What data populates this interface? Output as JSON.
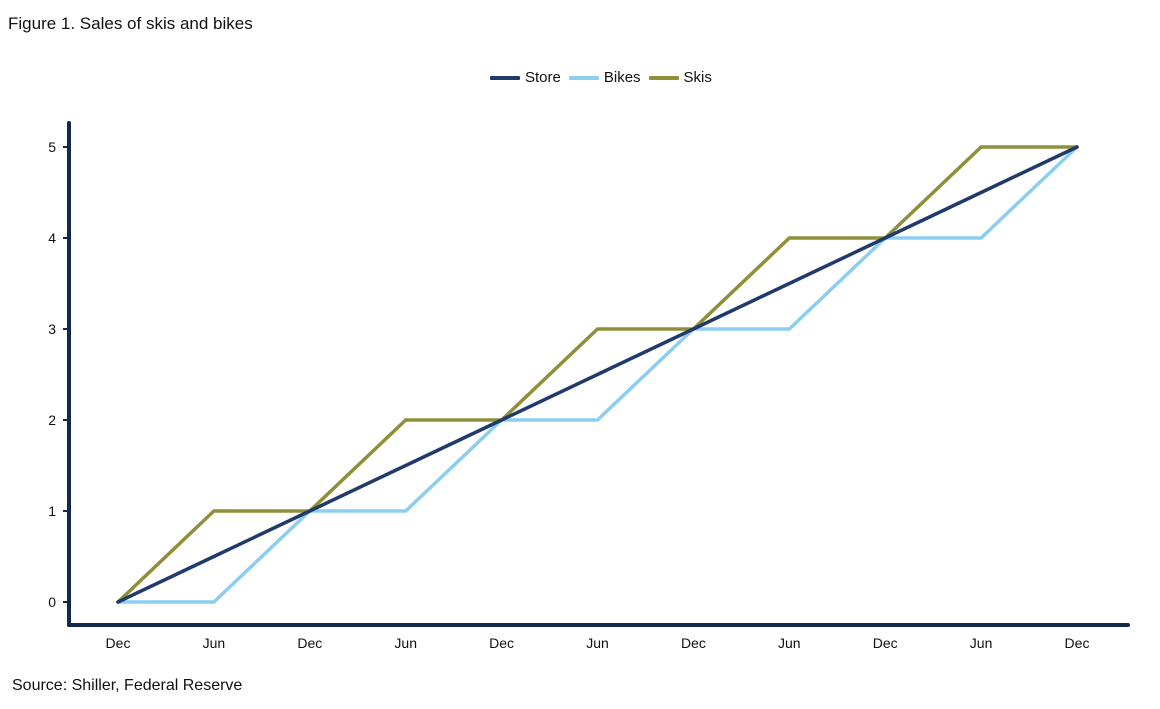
{
  "chart_data": {
    "type": "line",
    "title": "Figure 1. Sales of skis and bikes",
    "source": "Source: Shiller, Federal Reserve",
    "categories": [
      "Dec",
      "Jun",
      "Dec",
      "Jun",
      "Dec",
      "Jun",
      "Dec",
      "Jun",
      "Dec",
      "Jun",
      "Dec"
    ],
    "yticks": [
      "0",
      "1",
      "2",
      "3",
      "4",
      "5"
    ],
    "ylim": [
      0,
      5
    ],
    "legend_position": "top-center",
    "grid": false,
    "series": [
      {
        "name": "Store",
        "color": "#1f3a6b",
        "values": [
          0,
          0.5,
          1,
          1.5,
          2,
          2.5,
          3,
          3.5,
          4,
          4.5,
          5
        ]
      },
      {
        "name": "Bikes",
        "color": "#8ccdf2",
        "values": [
          0,
          0,
          1,
          1,
          2,
          2,
          3,
          3,
          4,
          4,
          5
        ]
      },
      {
        "name": "Skis",
        "color": "#8f8f3a",
        "values": [
          0,
          1,
          1,
          2,
          2,
          3,
          3,
          4,
          4,
          5,
          5
        ]
      }
    ],
    "axis_color": "#13294b"
  }
}
